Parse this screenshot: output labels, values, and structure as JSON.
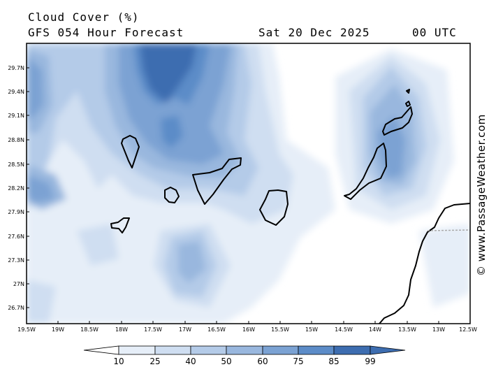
{
  "header": {
    "title": "Cloud Cover (%)",
    "subtitle": "GFS 054 Hour Forecast",
    "date": "Sat 20 Dec 2025",
    "time": "00 UTC"
  },
  "watermark": "© www.PassageWeather.com",
  "map": {
    "lat_labels": [
      "29.7N",
      "29.4N",
      "29.1N",
      "28.8N",
      "28.5N",
      "28.2N",
      "27.9N",
      "27.6N",
      "27.3N",
      "27N",
      "26.7N"
    ],
    "lon_labels": [
      "19.5W",
      "19W",
      "18.5W",
      "18W",
      "17.5W",
      "17W",
      "16.5W",
      "16W",
      "15.5W",
      "15W",
      "14.5W",
      "14W",
      "13.5W",
      "13W",
      "12.5W"
    ]
  },
  "colorbar": {
    "labels": [
      "10",
      "25",
      "40",
      "50",
      "60",
      "75",
      "85",
      "99"
    ],
    "colors": [
      "#ffffff",
      "#e6eef8",
      "#cfdef1",
      "#b4cbe8",
      "#99b7de",
      "#7ba2d3",
      "#5c8cc8",
      "#3d6db0"
    ]
  }
}
